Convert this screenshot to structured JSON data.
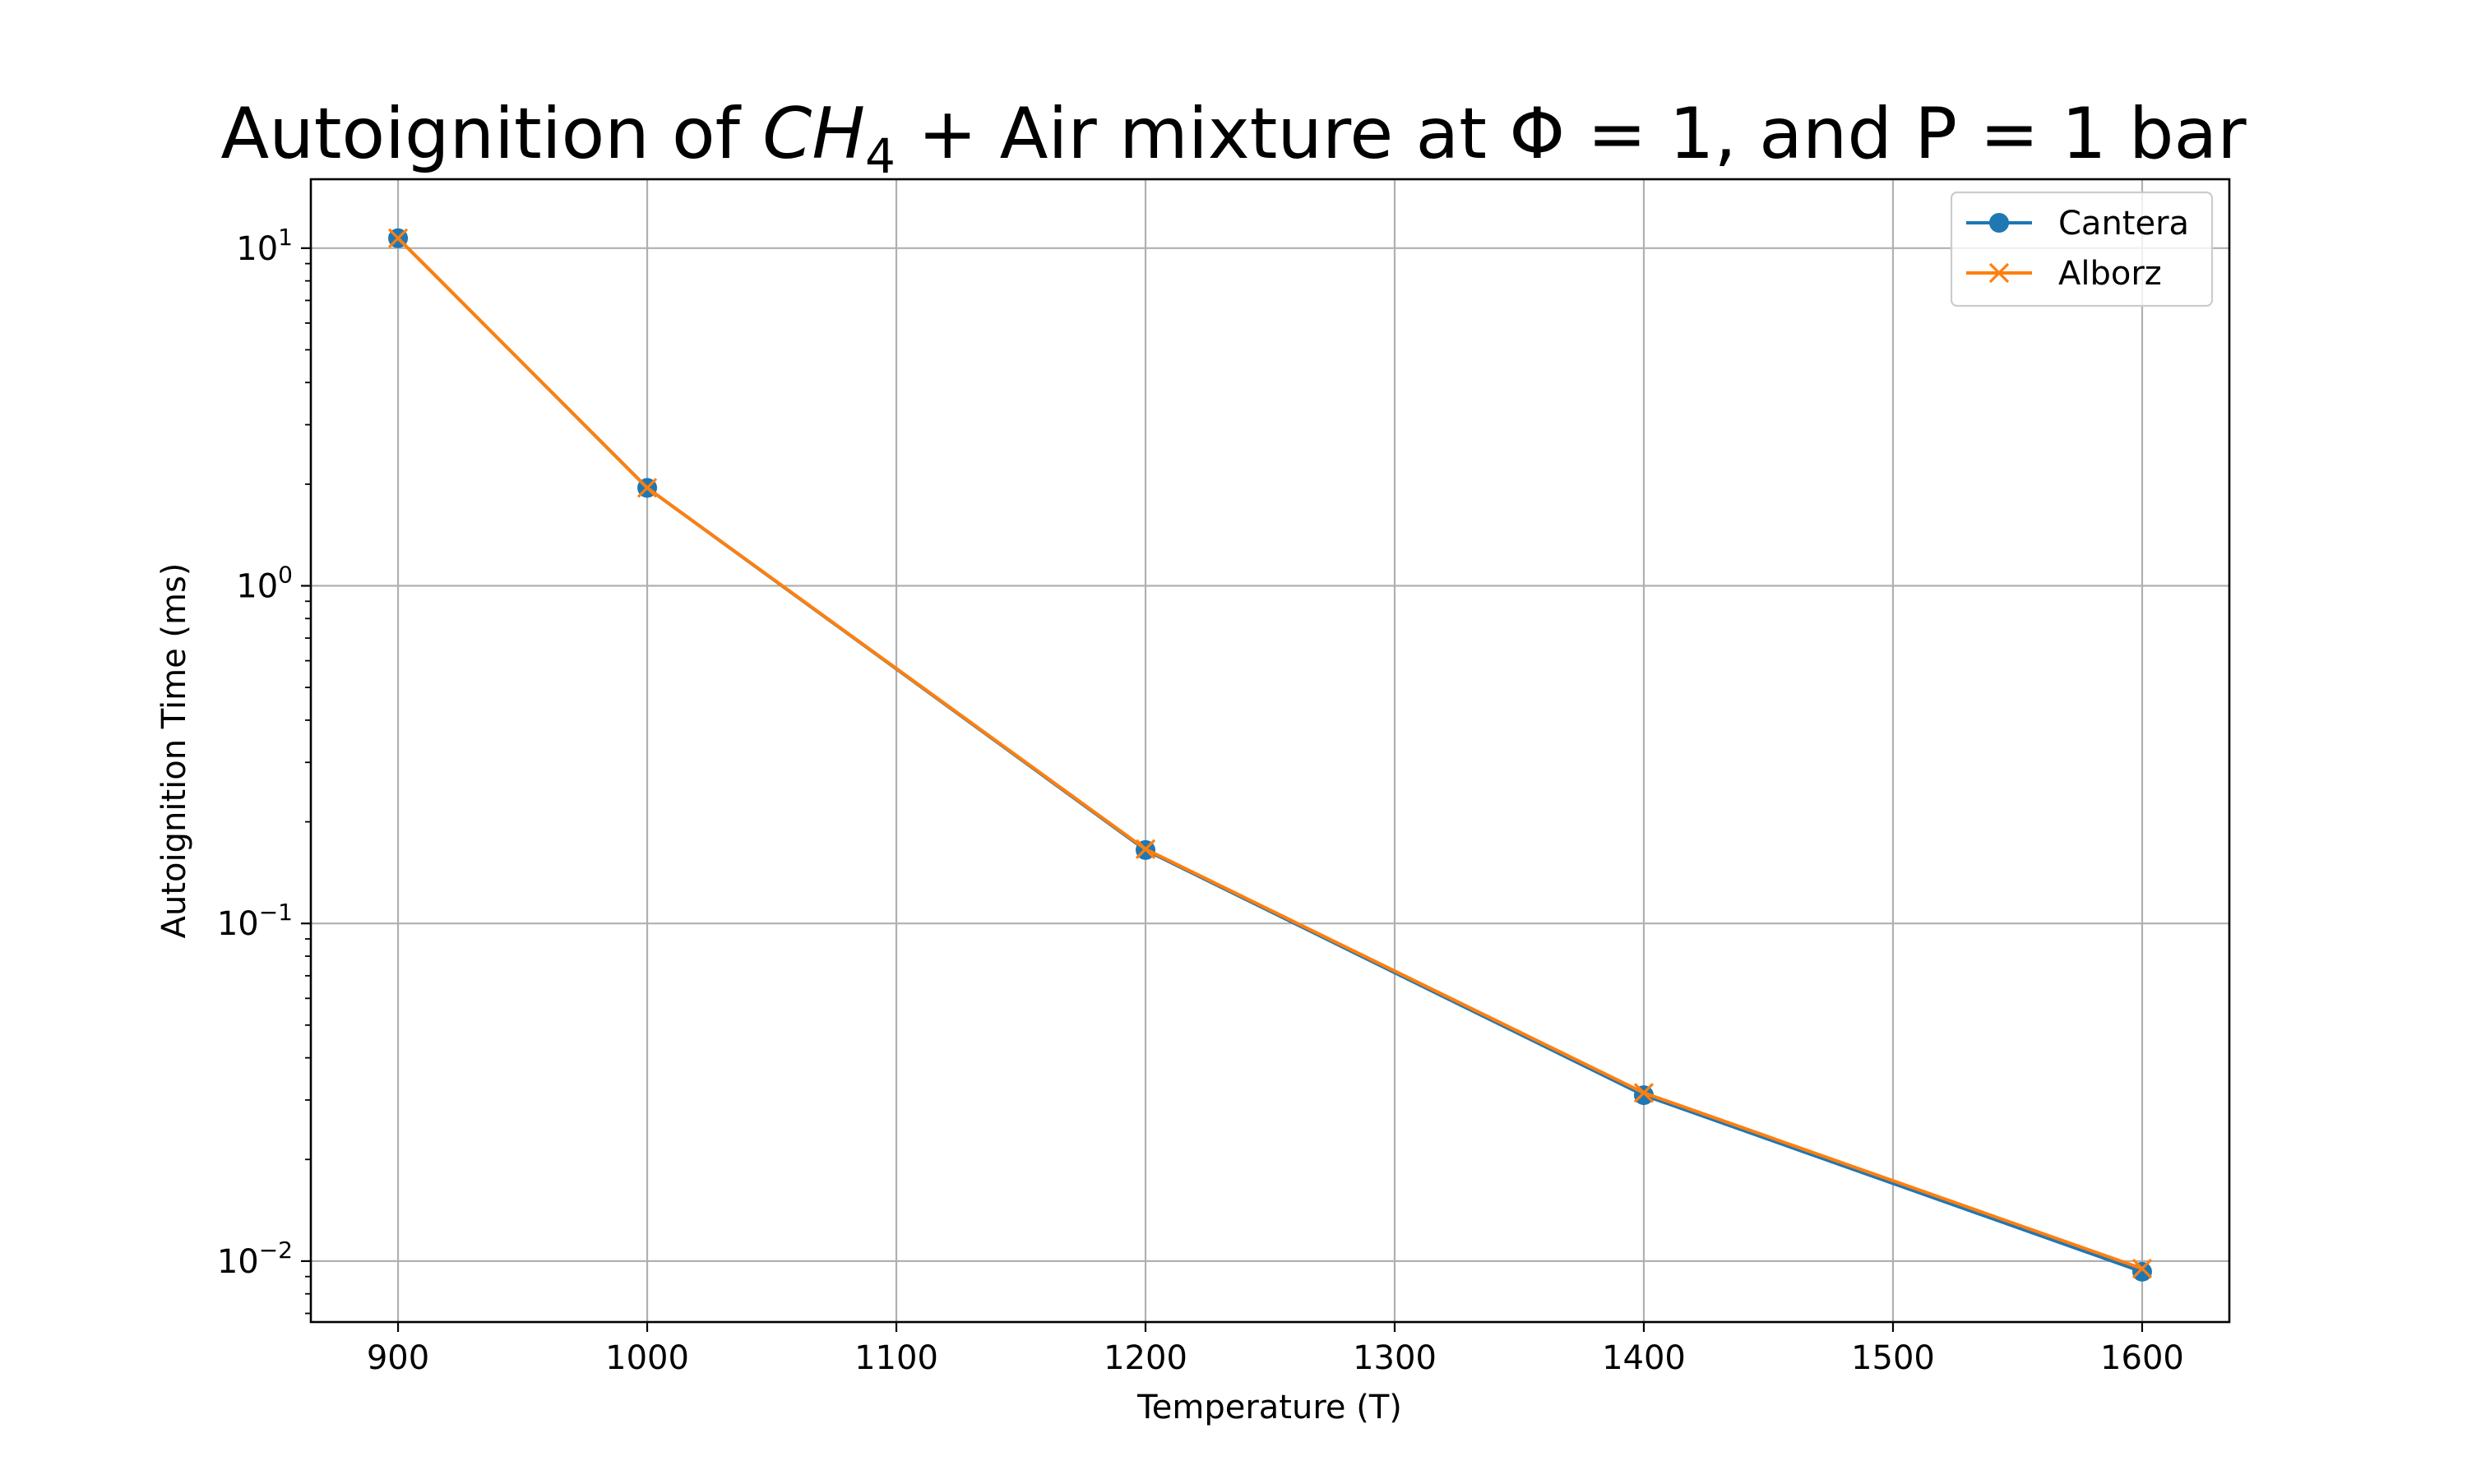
{
  "chart_data": {
    "type": "line",
    "title": {
      "prefix": "Autoignition of ",
      "formula_main": "CH",
      "formula_sub": "4",
      "suffix": " + Air mixture at Φ = 1, and P = 1 bar"
    },
    "xlabel": "Temperature (T)",
    "ylabel": "Autoignition Time (ms)",
    "xlim": [
      865,
      1635
    ],
    "ylim": [
      0.0066,
      16.0
    ],
    "yscale": "log",
    "grid": true,
    "legend_position": "top-right",
    "x_ticks": [
      900,
      1000,
      1100,
      1200,
      1300,
      1400,
      1500,
      1600
    ],
    "y_ticks": [
      {
        "value": 10,
        "base": "10",
        "exp": "1"
      },
      {
        "value": 1,
        "base": "10",
        "exp": "0"
      },
      {
        "value": 0.1,
        "base": "10",
        "exp": "−1"
      },
      {
        "value": 0.01,
        "base": "10",
        "exp": "−2"
      }
    ],
    "x": [
      900,
      1000,
      1200,
      1400,
      1600
    ],
    "series": [
      {
        "name": "Cantera",
        "marker": "circle",
        "color": "#1f77b4",
        "values": [
          10.7,
          1.95,
          0.165,
          0.031,
          0.0093
        ]
      },
      {
        "name": "Alborz",
        "marker": "x",
        "color": "#ff7f0e",
        "values": [
          10.7,
          1.95,
          0.166,
          0.0315,
          0.0095
        ]
      }
    ]
  }
}
